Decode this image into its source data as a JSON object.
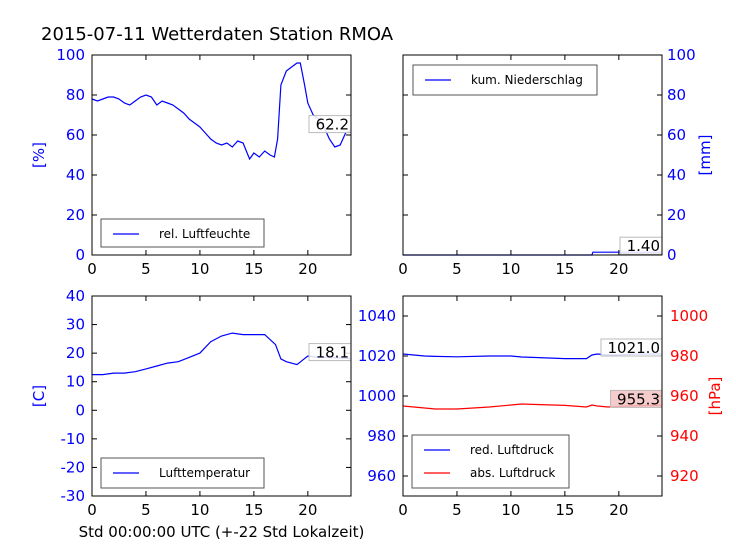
{
  "chart_data": [
    {
      "type": "line",
      "title": "2015-07-11 Wetterdaten Station RMOA",
      "ylabel": "[%]",
      "ylabel_color": "#0000ff",
      "xlim": [
        0,
        24
      ],
      "ylim": [
        0,
        100
      ],
      "xticks": [
        0,
        5,
        10,
        15,
        20
      ],
      "yticks": [
        0,
        20,
        40,
        60,
        80,
        100
      ],
      "legend": "lower-left",
      "annotation": {
        "text": "62.2",
        "bg": "#ffffff"
      },
      "series": [
        {
          "name": "rel. Luftfeuchte",
          "color": "#0000ff",
          "x": [
            0,
            0.5,
            1,
            1.5,
            2,
            2.5,
            3,
            3.5,
            4,
            4.5,
            5,
            5.5,
            6,
            6.5,
            7,
            7.5,
            8,
            8.5,
            9,
            9.5,
            10,
            10.5,
            11,
            11.5,
            12,
            12.5,
            13,
            13.5,
            14,
            14.3,
            14.6,
            15,
            15.5,
            16,
            16.5,
            16.9,
            17.2,
            17.5,
            18,
            18.5,
            19,
            19.3,
            19.7,
            20,
            20.5,
            21,
            21.5,
            22,
            22.5,
            23,
            23.5,
            24
          ],
          "y": [
            78,
            77,
            78,
            79,
            79,
            78,
            76,
            75,
            77,
            79,
            80,
            79,
            75,
            77,
            76,
            75,
            73,
            71,
            68,
            66,
            64,
            61,
            58,
            56,
            55,
            56,
            54,
            57,
            56,
            52,
            48,
            51,
            49,
            52,
            50,
            49,
            58,
            85,
            92,
            94,
            96,
            96,
            85,
            76,
            70,
            68,
            64,
            58,
            54,
            55,
            61,
            62.2
          ]
        }
      ]
    },
    {
      "type": "line",
      "ylabel": "[mm]",
      "ylabel_color": "#0000ff",
      "yaxis": "right",
      "xlim": [
        0,
        24
      ],
      "ylim": [
        0,
        100
      ],
      "xticks": [
        0,
        5,
        10,
        15,
        20
      ],
      "yticks": [
        0,
        20,
        40,
        60,
        80,
        100
      ],
      "legend": "upper-left",
      "annotation": {
        "text": "1.40",
        "bg": "#ffffff"
      },
      "series": [
        {
          "name": "kum. Niederschlag",
          "color": "#0000ff",
          "x": [
            0,
            17.5,
            17.6,
            24
          ],
          "y": [
            0,
            0,
            1.4,
            1.4
          ]
        }
      ]
    },
    {
      "type": "line",
      "ylabel": "[C]",
      "ylabel_color": "#0000ff",
      "xlabel": "Std 00:00:00 UTC (+-22 Std Lokalzeit)",
      "xlim": [
        0,
        24
      ],
      "ylim": [
        -30,
        40
      ],
      "xticks": [
        0,
        5,
        10,
        15,
        20
      ],
      "yticks": [
        -30,
        -20,
        -10,
        0,
        10,
        20,
        30,
        40
      ],
      "legend": "lower-left",
      "annotation": {
        "text": "18.1",
        "bg": "#ffffff"
      },
      "series": [
        {
          "name": "Lufttemperatur",
          "color": "#0000ff",
          "x": [
            0,
            1,
            2,
            3,
            4,
            5,
            6,
            7,
            8,
            9,
            10,
            11,
            12,
            13,
            14,
            15,
            16,
            17,
            17.5,
            18,
            19,
            19.5,
            20,
            21,
            22,
            23,
            24
          ],
          "y": [
            12.5,
            12.5,
            13,
            13,
            13.5,
            14.5,
            15.5,
            16.5,
            17,
            18.5,
            20,
            24,
            26,
            27,
            26.5,
            26.5,
            26.5,
            23,
            18,
            17,
            16,
            17.5,
            19,
            18.5,
            18.5,
            18.3,
            18.1
          ]
        }
      ]
    },
    {
      "type": "line",
      "ylabel": "[hPa]",
      "ylabel_color": "#ff0000",
      "yaxis": "dual",
      "xlim": [
        0,
        24
      ],
      "ylim": [
        950,
        1050
      ],
      "ylim_right": [
        910,
        1010
      ],
      "xticks": [
        0,
        5,
        10,
        15,
        20
      ],
      "yticks": [
        960,
        980,
        1000,
        1020,
        1040
      ],
      "yticks_right": [
        920,
        940,
        960,
        980,
        1000
      ],
      "legend": "lower-left",
      "annotations": [
        {
          "text": "1021.0",
          "bg": "#ffffff",
          "value": 1021.0,
          "axis": "left"
        },
        {
          "text": "955.3",
          "bg": "#f4c2c2",
          "value": 955.3,
          "axis": "right"
        }
      ],
      "series": [
        {
          "name": "red. Luftdruck",
          "color": "#0000ff",
          "axis": "left",
          "x": [
            0,
            1,
            2,
            3,
            5,
            8,
            10,
            11,
            12,
            15,
            17,
            17.5,
            18,
            19,
            20,
            22,
            24
          ],
          "y": [
            1021,
            1020.5,
            1020,
            1019.8,
            1019.6,
            1020,
            1020,
            1019.5,
            1019.3,
            1018.7,
            1018.7,
            1020.5,
            1021,
            1020.5,
            1020.6,
            1021,
            1021
          ]
        },
        {
          "name": "abs. Luftdruck",
          "color": "#ff0000",
          "axis": "right",
          "x": [
            0,
            1,
            2,
            3,
            5,
            8,
            10,
            11,
            12,
            15,
            17,
            17.5,
            18,
            19,
            20,
            22,
            24
          ],
          "y": [
            955,
            954.5,
            954,
            953.5,
            953.5,
            954.5,
            955.5,
            956,
            955.8,
            955.3,
            954.5,
            955.5,
            955,
            954.5,
            954.8,
            955.2,
            955.3
          ]
        }
      ]
    }
  ]
}
